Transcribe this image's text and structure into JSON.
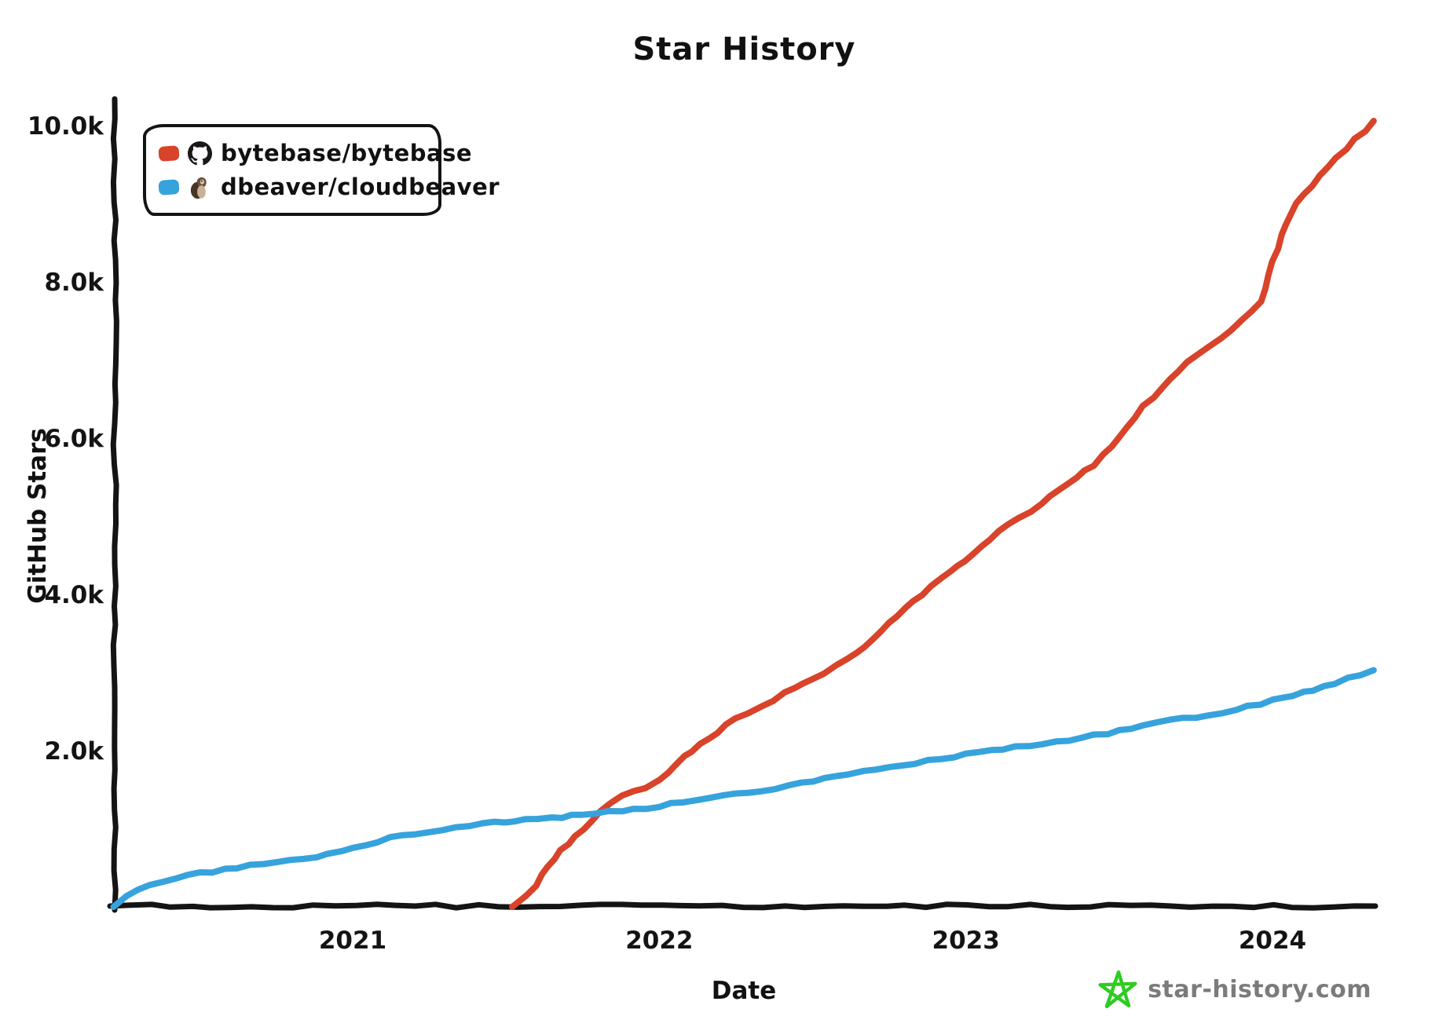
{
  "title": "Star History",
  "legend": {
    "items": [
      {
        "label": "bytebase/bytebase",
        "icon": "github-octocat"
      },
      {
        "label": "dbeaver/cloudbeaver",
        "icon": "beaver"
      }
    ]
  },
  "footer": {
    "site": "star-history.com",
    "star_color": "#2ecc21",
    "text_color": "#7b7b7b"
  },
  "chart_data": {
    "type": "line",
    "title": "Star History",
    "xlabel": "Date",
    "ylabel": "GitHub Stars",
    "x_unit": "decimal_year",
    "xlim": [
      2020.2,
      2024.38
    ],
    "ylim": [
      0,
      10000
    ],
    "grid": false,
    "legend_position": "top-left",
    "axis_color": "#141414",
    "x_ticks": [
      {
        "value": 2021,
        "label": "2021"
      },
      {
        "value": 2022,
        "label": "2022"
      },
      {
        "value": 2023,
        "label": "2023"
      },
      {
        "value": 2024,
        "label": "2024"
      }
    ],
    "y_ticks": [
      {
        "value": 10000,
        "label": "10.0k"
      },
      {
        "value": 8000,
        "label": "8.0k"
      },
      {
        "value": 6000,
        "label": "6.0k"
      },
      {
        "value": 4000,
        "label": "4.0k"
      },
      {
        "value": 2000,
        "label": "2.0k"
      }
    ],
    "series": [
      {
        "name": "bytebase/bytebase",
        "color": "#d8432a",
        "points": [
          [
            2021.52,
            0
          ],
          [
            2021.57,
            160
          ],
          [
            2021.62,
            400
          ],
          [
            2021.68,
            720
          ],
          [
            2021.75,
            980
          ],
          [
            2021.81,
            1230
          ],
          [
            2021.88,
            1410
          ],
          [
            2021.95,
            1530
          ],
          [
            2022.0,
            1640
          ],
          [
            2022.08,
            1920
          ],
          [
            2022.16,
            2160
          ],
          [
            2022.25,
            2400
          ],
          [
            2022.33,
            2560
          ],
          [
            2022.41,
            2730
          ],
          [
            2022.5,
            2900
          ],
          [
            2022.58,
            3080
          ],
          [
            2022.67,
            3330
          ],
          [
            2022.75,
            3630
          ],
          [
            2022.83,
            3910
          ],
          [
            2022.92,
            4200
          ],
          [
            2023.0,
            4440
          ],
          [
            2023.08,
            4710
          ],
          [
            2023.17,
            4980
          ],
          [
            2023.25,
            5160
          ],
          [
            2023.33,
            5400
          ],
          [
            2023.42,
            5660
          ],
          [
            2023.5,
            6010
          ],
          [
            2023.58,
            6400
          ],
          [
            2023.67,
            6760
          ],
          [
            2023.75,
            7060
          ],
          [
            2023.83,
            7260
          ],
          [
            2023.9,
            7500
          ],
          [
            2023.96,
            7760
          ],
          [
            2024.0,
            8250
          ],
          [
            2024.03,
            8600
          ],
          [
            2024.08,
            9000
          ],
          [
            2024.15,
            9350
          ],
          [
            2024.24,
            9700
          ],
          [
            2024.33,
            10060
          ]
        ]
      },
      {
        "name": "dbeaver/cloudbeaver",
        "color": "#37a3dc",
        "points": [
          [
            2020.22,
            0
          ],
          [
            2020.26,
            130
          ],
          [
            2020.3,
            230
          ],
          [
            2020.38,
            330
          ],
          [
            2020.5,
            430
          ],
          [
            2020.62,
            500
          ],
          [
            2020.75,
            570
          ],
          [
            2020.88,
            650
          ],
          [
            2021.0,
            760
          ],
          [
            2021.12,
            880
          ],
          [
            2021.25,
            970
          ],
          [
            2021.38,
            1040
          ],
          [
            2021.5,
            1090
          ],
          [
            2021.56,
            1110
          ],
          [
            2021.65,
            1130
          ],
          [
            2021.75,
            1180
          ],
          [
            2021.88,
            1230
          ],
          [
            2022.0,
            1290
          ],
          [
            2022.12,
            1370
          ],
          [
            2022.25,
            1440
          ],
          [
            2022.38,
            1520
          ],
          [
            2022.5,
            1610
          ],
          [
            2022.62,
            1700
          ],
          [
            2022.75,
            1790
          ],
          [
            2022.88,
            1870
          ],
          [
            2023.0,
            1950
          ],
          [
            2023.12,
            2020
          ],
          [
            2023.25,
            2080
          ],
          [
            2023.38,
            2160
          ],
          [
            2023.5,
            2250
          ],
          [
            2023.62,
            2360
          ],
          [
            2023.75,
            2430
          ],
          [
            2023.88,
            2520
          ],
          [
            2024.0,
            2640
          ],
          [
            2024.1,
            2740
          ],
          [
            2024.2,
            2860
          ],
          [
            2024.29,
            2980
          ],
          [
            2024.33,
            3030
          ]
        ]
      }
    ]
  }
}
